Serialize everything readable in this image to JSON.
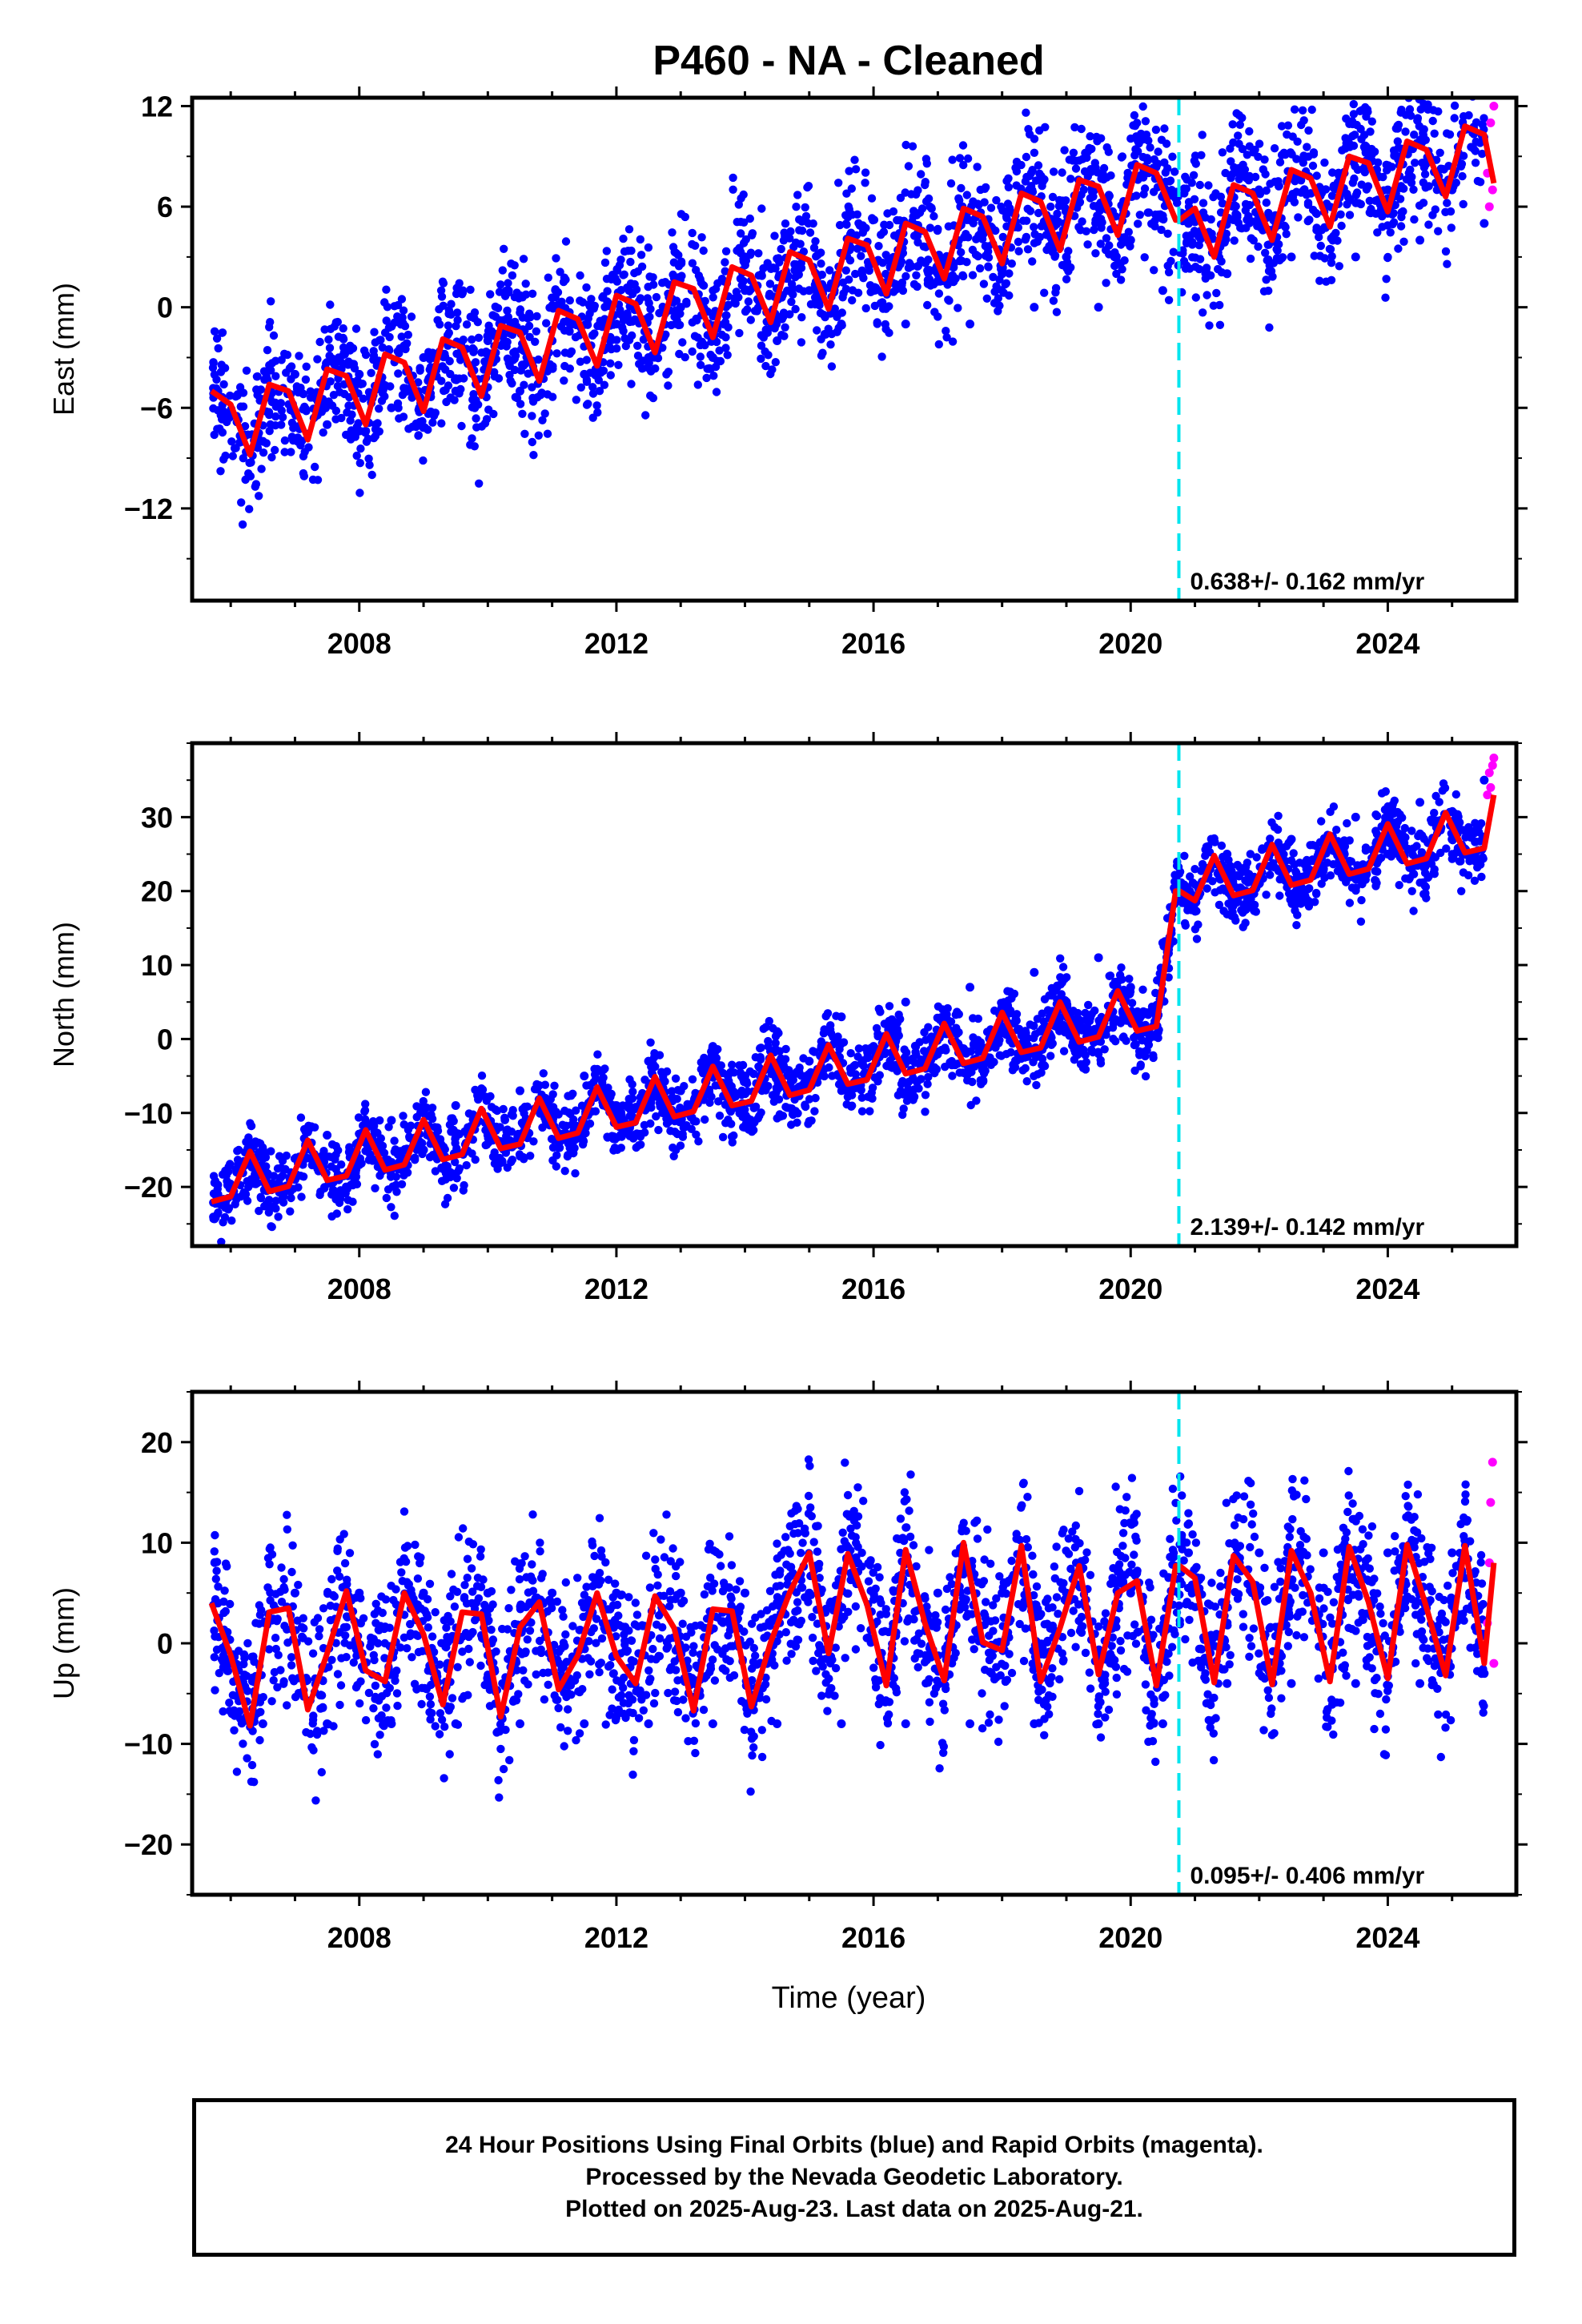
{
  "title": "P460  - NA - Cleaned",
  "xlabel": "Time (year)",
  "footer": [
    "24 Hour Positions Using Final Orbits (blue) and Rapid Orbits (magenta).",
    "Processed by the Nevada Geodetic Laboratory.",
    "Plotted on 2025-Aug-23. Last data on 2025-Aug-21."
  ],
  "colors": {
    "final": "#0000ff",
    "rapid": "#ff00ff",
    "model": "#ff0000",
    "equipment_change": "#00e5ee"
  },
  "chart_data": [
    {
      "type": "scatter",
      "component": "east",
      "ylabel": "East (mm)",
      "ylim": [
        -17.5,
        12.5
      ],
      "yticks": [
        -12,
        -6,
        0,
        6,
        12
      ],
      "xlim": [
        2005.4,
        2026.0
      ],
      "xticks": [
        2008,
        2012,
        2016,
        2020,
        2024
      ],
      "rate_label": "0.638+/- 0.162 mm/yr",
      "offset_time": 2020.75,
      "series": [
        {
          "style": "final",
          "x": [
            2005.8,
            2006.5,
            2007.0,
            2007.5,
            2008.0,
            2008.5,
            2009.0,
            2009.5,
            2010.0,
            2010.5,
            2011.0,
            2011.5,
            2012.0,
            2012.5,
            2013.0,
            2013.5,
            2014.0,
            2014.5,
            2015.0,
            2015.5,
            2016.0,
            2016.5,
            2017.0,
            2017.5,
            2018.0,
            2018.5,
            2019.0,
            2019.5,
            2020.0,
            2020.5,
            2020.9,
            2021.5,
            2022.0,
            2022.5,
            2023.0,
            2023.5,
            2024.0,
            2024.5,
            2025.0,
            2025.5
          ],
          "y": [
            -5,
            -8,
            -4,
            -7,
            -4,
            -6,
            -3,
            -5,
            -2,
            -5,
            -2,
            -4,
            -1,
            -3,
            0,
            -3,
            1,
            -2,
            1,
            -1,
            1,
            -1,
            2,
            -1,
            2,
            0,
            3,
            0,
            4,
            1,
            5,
            2,
            5,
            3,
            6,
            3,
            7,
            4,
            7,
            5
          ]
        },
        {
          "style": "rapid",
          "x": [
            2025.55,
            2025.58,
            2025.6,
            2025.63,
            2025.65
          ],
          "y": [
            8,
            6,
            11,
            7,
            12
          ]
        },
        {
          "style": "model",
          "x": [
            2005.7,
            2006.0,
            2006.3,
            2006.6,
            2006.9,
            2007.2,
            2007.5,
            2007.8,
            2008.1,
            2008.4,
            2008.7,
            2009.0,
            2009.3,
            2009.6,
            2009.9,
            2010.2,
            2010.5,
            2010.8,
            2011.1,
            2011.4,
            2011.7,
            2012.0,
            2012.3,
            2012.6,
            2012.9,
            2013.2,
            2013.5,
            2013.8,
            2014.1,
            2014.4,
            2014.7,
            2015.0,
            2015.3,
            2015.6,
            2015.9,
            2016.2,
            2016.5,
            2016.8,
            2017.1,
            2017.4,
            2017.7,
            2018.0,
            2018.3,
            2018.6,
            2018.9,
            2019.2,
            2019.5,
            2019.8,
            2020.1,
            2020.4,
            2020.7,
            2020.76,
            2021.0,
            2021.3,
            2021.6,
            2021.9,
            2022.2,
            2022.5,
            2022.8,
            2023.1,
            2023.4,
            2023.7,
            2024.0,
            2024.3,
            2024.6,
            2024.9,
            2025.2,
            2025.5,
            2025.65
          ],
          "y": [
            -5.0,
            -5.8,
            -8.8,
            -4.6,
            -5.0,
            -7.9,
            -3.7,
            -4.1,
            -7.0,
            -2.8,
            -3.3,
            -6.2,
            -1.9,
            -2.4,
            -5.3,
            -1.1,
            -1.5,
            -4.4,
            -0.2,
            -0.7,
            -3.5,
            0.7,
            0.2,
            -2.7,
            1.5,
            1.1,
            -1.8,
            2.4,
            1.9,
            -0.9,
            3.3,
            2.8,
            -0.1,
            4.1,
            3.7,
            0.8,
            5.0,
            4.5,
            1.7,
            5.9,
            5.4,
            2.6,
            6.8,
            6.3,
            3.4,
            7.6,
            7.2,
            4.3,
            8.5,
            8.0,
            5.2,
            5.2,
            5.9,
            3.0,
            7.3,
            6.8,
            4.0,
            8.2,
            7.7,
            4.8,
            9.0,
            8.6,
            5.7,
            9.9,
            9.4,
            6.6,
            10.8,
            10.3,
            7.4
          ]
        }
      ]
    },
    {
      "type": "scatter",
      "component": "north",
      "ylabel": "North (mm)",
      "ylim": [
        -28,
        40
      ],
      "yticks": [
        -20,
        -10,
        0,
        10,
        20,
        30
      ],
      "xlim": [
        2005.4,
        2026.0
      ],
      "xticks": [
        2008,
        2012,
        2016,
        2020,
        2024
      ],
      "rate_label": "2.139+/- 0.142 mm/yr",
      "offset_time": 2020.75,
      "series": [
        {
          "style": "final",
          "x": [
            2005.8,
            2006.5,
            2007.0,
            2007.5,
            2008.0,
            2008.5,
            2009.0,
            2009.5,
            2010.0,
            2010.5,
            2011.0,
            2011.5,
            2012.0,
            2012.5,
            2013.0,
            2013.5,
            2014.0,
            2014.5,
            2015.0,
            2015.5,
            2016.0,
            2016.5,
            2017.0,
            2017.5,
            2018.0,
            2018.5,
            2019.0,
            2019.5,
            2020.0,
            2020.5,
            2020.9,
            2021.5,
            2022.0,
            2022.5,
            2023.0,
            2023.5,
            2024.0,
            2024.5,
            2025.0,
            2025.5
          ],
          "y": [
            -21,
            -15,
            -19,
            -13,
            -17,
            -11,
            -15,
            -9,
            -13,
            -7,
            -11,
            -5,
            -9,
            -3,
            -7,
            -1,
            -5,
            1,
            -3,
            3,
            -1,
            5,
            1,
            7,
            3,
            9,
            5,
            11,
            7,
            13,
            18,
            25,
            21,
            27,
            23,
            30,
            25,
            32,
            27,
            35
          ]
        },
        {
          "style": "rapid",
          "x": [
            2025.55,
            2025.58,
            2025.6,
            2025.63,
            2025.65
          ],
          "y": [
            33,
            36,
            34,
            37,
            38
          ]
        },
        {
          "style": "model",
          "x": [
            2005.7,
            2006.0,
            2006.3,
            2006.6,
            2006.9,
            2007.2,
            2007.5,
            2007.8,
            2008.1,
            2008.4,
            2008.7,
            2009.0,
            2009.3,
            2009.6,
            2009.9,
            2010.2,
            2010.5,
            2010.8,
            2011.1,
            2011.4,
            2011.7,
            2012.0,
            2012.3,
            2012.6,
            2012.9,
            2013.2,
            2013.5,
            2013.8,
            2014.1,
            2014.4,
            2014.7,
            2015.0,
            2015.3,
            2015.6,
            2015.9,
            2016.2,
            2016.5,
            2016.8,
            2017.1,
            2017.4,
            2017.7,
            2018.0,
            2018.3,
            2018.6,
            2018.9,
            2019.2,
            2019.5,
            2019.8,
            2020.1,
            2020.4,
            2020.7,
            2020.76,
            2021.0,
            2021.3,
            2021.6,
            2021.9,
            2022.2,
            2022.5,
            2022.8,
            2023.1,
            2023.4,
            2023.7,
            2024.0,
            2024.3,
            2024.6,
            2024.9,
            2025.2,
            2025.5,
            2025.65
          ],
          "y": [
            -22.0,
            -21.3,
            -15.2,
            -20.6,
            -19.9,
            -13.7,
            -19.1,
            -18.5,
            -12.3,
            -17.7,
            -17.0,
            -10.9,
            -16.3,
            -15.6,
            -9.4,
            -14.8,
            -14.2,
            -8.0,
            -13.4,
            -12.7,
            -6.5,
            -11.9,
            -11.3,
            -5.1,
            -10.5,
            -9.8,
            -3.7,
            -9.0,
            -8.4,
            -2.2,
            -7.6,
            -6.9,
            -0.8,
            -6.1,
            -5.5,
            0.7,
            -4.7,
            -4.0,
            2.1,
            -3.3,
            -2.6,
            3.6,
            -1.8,
            -1.2,
            5.0,
            -0.4,
            0.3,
            6.5,
            1.1,
            1.7,
            20.0,
            20.0,
            18.7,
            24.8,
            19.4,
            20.1,
            26.3,
            20.8,
            21.5,
            27.7,
            22.3,
            23.0,
            29.1,
            23.7,
            24.4,
            30.6,
            25.2,
            25.8,
            33.0
          ]
        }
      ]
    },
    {
      "type": "scatter",
      "component": "up",
      "ylabel": "Up (mm)",
      "ylim": [
        -25,
        25
      ],
      "yticks": [
        -20,
        -10,
        0,
        10,
        20
      ],
      "xlim": [
        2005.4,
        2026.0
      ],
      "xticks": [
        2008,
        2012,
        2016,
        2020,
        2024
      ],
      "rate_label": "0.095+/- 0.406 mm/yr",
      "offset_time": 2020.75,
      "series": [
        {
          "style": "final",
          "x": [
            2005.8,
            2006.5,
            2007.0,
            2007.5,
            2008.0,
            2008.5,
            2009.0,
            2009.5,
            2010.0,
            2010.5,
            2011.0,
            2011.5,
            2012.0,
            2012.5,
            2013.0,
            2013.5,
            2014.0,
            2014.5,
            2015.0,
            2015.5,
            2016.0,
            2016.5,
            2017.0,
            2017.5,
            2018.0,
            2018.5,
            2019.0,
            2019.5,
            2020.0,
            2020.5,
            2020.9,
            2021.5,
            2022.0,
            2022.5,
            2023.0,
            2023.5,
            2024.0,
            2024.5,
            2025.0,
            2025.5
          ],
          "y": [
            4,
            -8,
            5,
            -8,
            5,
            -8,
            5,
            -8,
            5,
            -8,
            5,
            -8,
            5,
            -8,
            5,
            -8,
            5,
            -8,
            5,
            -8,
            5,
            -8,
            5,
            -8,
            5,
            -8,
            5,
            -8,
            5,
            -8,
            9,
            -4,
            9,
            -4,
            9,
            -4,
            9,
            -4,
            9,
            -3
          ]
        },
        {
          "style": "rapid",
          "x": [
            2025.55,
            2025.58,
            2025.6,
            2025.63,
            2025.65
          ],
          "y": [
            2,
            8,
            14,
            18,
            -2
          ]
        },
        {
          "style": "model",
          "x": [
            2005.7,
            2006.0,
            2006.3,
            2006.6,
            2006.9,
            2007.2,
            2007.5,
            2007.8,
            2008.1,
            2008.4,
            2008.7,
            2009.0,
            2009.3,
            2009.6,
            2009.9,
            2010.2,
            2010.5,
            2010.8,
            2011.1,
            2011.4,
            2011.7,
            2012.0,
            2012.3,
            2012.6,
            2012.9,
            2013.2,
            2013.5,
            2013.8,
            2014.1,
            2014.4,
            2014.7,
            2015.0,
            2015.3,
            2015.6,
            2015.9,
            2016.2,
            2016.5,
            2016.8,
            2017.1,
            2017.4,
            2017.7,
            2018.0,
            2018.3,
            2018.6,
            2018.9,
            2019.2,
            2019.5,
            2019.8,
            2020.1,
            2020.4,
            2020.7,
            2020.76,
            2021.0,
            2021.3,
            2021.6,
            2021.9,
            2022.2,
            2022.5,
            2022.8,
            2023.1,
            2023.4,
            2023.7,
            2024.0,
            2024.3,
            2024.6,
            2024.9,
            2025.2,
            2025.5,
            2025.65
          ],
          "y": [
            4.0,
            -1.2,
            -8.2,
            3.1,
            3.5,
            -6.6,
            -1.0,
            5.2,
            -2.7,
            -3.8,
            5.0,
            0.9,
            -6.1,
            3.1,
            2.9,
            -7.3,
            1.6,
            4.1,
            -4.6,
            -1.2,
            5.0,
            -1.3,
            -4.0,
            4.7,
            1.5,
            -6.7,
            3.4,
            3.2,
            -6.3,
            0.1,
            5.1,
            9.0,
            -1.0,
            8.9,
            3.8,
            -4.2,
            9.3,
            2.0,
            -3.7,
            10.0,
            0.1,
            -0.7,
            9.7,
            -3.8,
            1.5,
            7.7,
            -3.1,
            5.0,
            6.2,
            -4.2,
            7.7,
            7.7,
            6.5,
            -3.9,
            8.7,
            6.1,
            -4.1,
            9.2,
            5.0,
            -3.8,
            9.6,
            4.1,
            -3.5,
            9.8,
            3.6,
            -3.2,
            9.7,
            -2.0,
            8.0
          ]
        }
      ]
    }
  ]
}
